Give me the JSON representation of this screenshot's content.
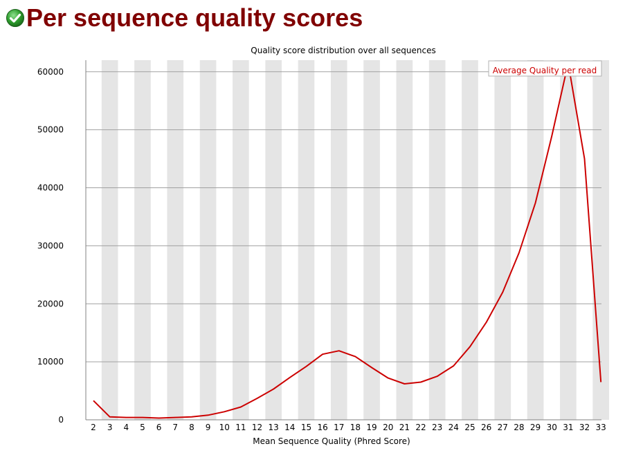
{
  "header": {
    "title": "Per sequence quality scores",
    "status_icon": "pass-check-icon",
    "status_color": "#2e9e2e",
    "title_color": "#800000"
  },
  "chart_data": {
    "type": "line",
    "title": "Quality score distribution over all sequences",
    "xlabel": "Mean Sequence Quality (Phred Score)",
    "ylabel": "",
    "x": [
      2,
      3,
      4,
      5,
      6,
      7,
      8,
      9,
      10,
      11,
      12,
      13,
      14,
      15,
      16,
      17,
      18,
      19,
      20,
      21,
      22,
      23,
      24,
      25,
      26,
      27,
      28,
      29,
      30,
      31,
      32,
      33
    ],
    "ylim": [
      0,
      62000
    ],
    "yticks": [
      0,
      10000,
      20000,
      30000,
      40000,
      50000,
      60000
    ],
    "grid": true,
    "legend_position": "top-right",
    "series": [
      {
        "name": "Average Quality per read",
        "color": "#cc0000",
        "values": [
          3300,
          500,
          400,
          400,
          300,
          400,
          500,
          800,
          1400,
          2200,
          3700,
          5300,
          7300,
          9200,
          11300,
          11900,
          10900,
          9000,
          7200,
          6200,
          6500,
          7500,
          9300,
          12600,
          16800,
          22000,
          28800,
          37400,
          48900,
          61500,
          45000,
          6500
        ]
      }
    ],
    "colors": {
      "band": "#e5e5e5",
      "grid": "#a0a0a0",
      "axis": "#808080",
      "legend_border": "#b0b0b0"
    }
  }
}
